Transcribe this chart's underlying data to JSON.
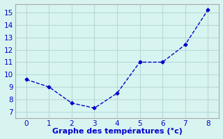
{
  "x": [
    0,
    1,
    2,
    3,
    4,
    5,
    6,
    7,
    8
  ],
  "y": [
    9.6,
    9.0,
    7.7,
    7.3,
    8.5,
    11.0,
    11.0,
    12.4,
    15.2
  ],
  "line_color": "#0000cc",
  "marker": "D",
  "marker_size": 2.5,
  "line_width": 1.0,
  "linestyle": "--",
  "background_color": "#d8f4f0",
  "grid_color": "#b8d8d8",
  "xlabel": "Graphe des températures (°c)",
  "xlabel_color": "#0000cc",
  "xlabel_fontsize": 8,
  "tick_color": "#0000cc",
  "tick_fontsize": 7.5,
  "xlim": [
    -0.5,
    8.5
  ],
  "ylim": [
    6.5,
    15.7
  ],
  "yticks": [
    7,
    8,
    9,
    10,
    11,
    12,
    13,
    14,
    15
  ],
  "xticks": [
    0,
    1,
    2,
    3,
    4,
    5,
    6,
    7,
    8
  ],
  "spine_color": "#aaaaaa"
}
